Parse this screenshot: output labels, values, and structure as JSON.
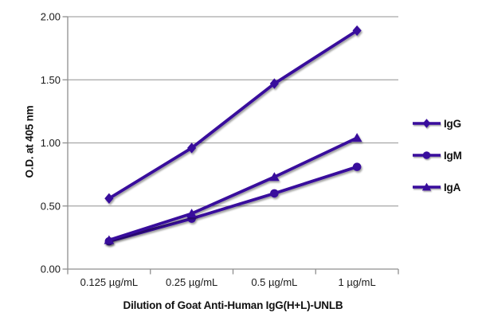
{
  "chart_data": {
    "type": "line",
    "xlabel": "Dilution of Goat Anti-Human IgG(H+L)-UNLB",
    "ylabel": "O.D. at 405 nm",
    "categories": [
      "0.125 µg/mL",
      "0.25 µg/mL",
      "0.5 µg/mL",
      "1 µg/mL"
    ],
    "ylim": [
      0.0,
      2.0
    ],
    "ytick_step": 0.5,
    "ytick_labels": [
      "0.00",
      "0.50",
      "1.00",
      "1.50",
      "2.00"
    ],
    "grid": true,
    "legend_position": "right",
    "series": [
      {
        "name": "IgG",
        "marker": "diamond",
        "values": [
          0.56,
          0.96,
          1.47,
          1.89
        ]
      },
      {
        "name": "IgM",
        "marker": "circle",
        "values": [
          0.22,
          0.4,
          0.6,
          0.81
        ]
      },
      {
        "name": "IgA",
        "marker": "triangle",
        "values": [
          0.23,
          0.44,
          0.73,
          1.04
        ]
      }
    ],
    "colors": {
      "series": "#39099c",
      "grid": "#a6a6a6",
      "axis": "#8f8f8f",
      "text": "#1a1a1a"
    }
  }
}
